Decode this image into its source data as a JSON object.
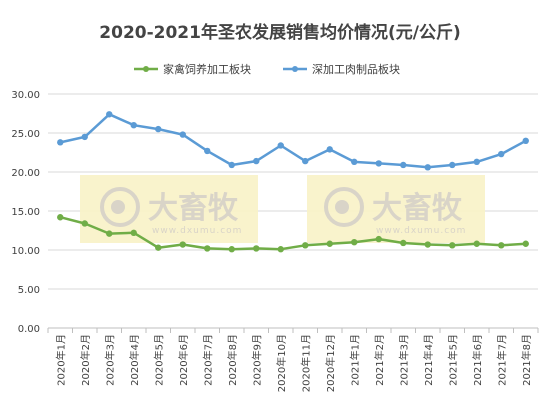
{
  "chart_data": {
    "type": "line",
    "title": "2020-2021年圣农发展销售均价情况(元/公斤)",
    "categories": [
      "2020年1月",
      "2020年2月",
      "2020年3月",
      "2020年4月",
      "2020年5月",
      "2020年6月",
      "2020年7月",
      "2020年8月",
      "2020年9月",
      "2020年10月",
      "2020年11月",
      "2020年12月",
      "2021年1月",
      "2021年2月",
      "2021年3月",
      "2021年4月",
      "2021年5月",
      "2021年6月",
      "2021年7月",
      "2021年8月"
    ],
    "series": [
      {
        "name": "家禽饲养加工板块",
        "color": "#70ad47",
        "values": [
          14.2,
          13.4,
          12.1,
          12.2,
          10.3,
          10.7,
          10.2,
          10.1,
          10.2,
          10.1,
          10.6,
          10.8,
          11.0,
          11.4,
          10.9,
          10.7,
          10.6,
          10.8,
          10.6,
          10.8
        ]
      },
      {
        "name": "深加工肉制品板块",
        "color": "#5b9bd5",
        "values": [
          23.8,
          24.5,
          27.4,
          26.0,
          25.5,
          24.8,
          22.7,
          20.9,
          21.4,
          23.4,
          21.4,
          22.9,
          21.3,
          21.1,
          20.9,
          20.6,
          20.9,
          21.3,
          22.3,
          24.0
        ]
      }
    ],
    "yticks": [
      "0.00",
      "5.00",
      "10.00",
      "15.00",
      "20.00",
      "25.00",
      "30.00"
    ],
    "ylim": [
      0,
      30
    ],
    "grid": true,
    "legend": "top-center",
    "xlabel": "",
    "ylabel": ""
  },
  "watermark": {
    "brand": "大畜牧",
    "url": "www.dxumu.com"
  }
}
